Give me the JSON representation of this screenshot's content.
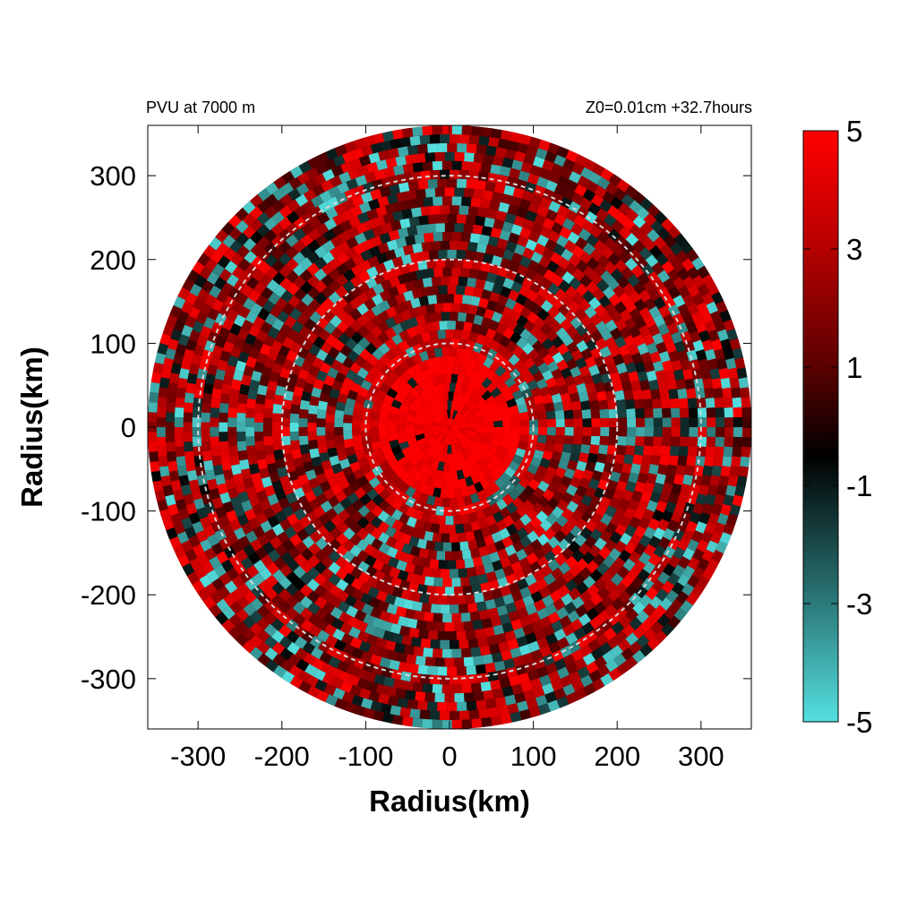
{
  "chart_data": {
    "type": "heatmap",
    "title_left": "PVU at  7000 m",
    "title_right": "Z0=0.01cm  +32.7hours",
    "xlabel": "Radius(km)",
    "ylabel": "Radius(km)",
    "xlim": [
      -360,
      360
    ],
    "ylim": [
      -360,
      360
    ],
    "x_ticks": [
      "-300",
      "-200",
      "-100",
      "0",
      "100",
      "200",
      "300"
    ],
    "y_ticks": [
      "300",
      "200",
      "100",
      "0",
      "-100",
      "-200",
      "-300"
    ],
    "domain_radius_km": 360,
    "reference_circles_km": [
      100,
      200,
      300
    ],
    "colorbar": {
      "range": [
        -5,
        5
      ],
      "ticks": [
        "5",
        "3",
        "1",
        "-1",
        "-3",
        "-5"
      ],
      "colors": {
        "high": "#ff0000",
        "mid": "#000000",
        "low": "#55e0e0"
      }
    },
    "field_description": "Potential vorticity (PVU); core >5 PVU within ~100 km of center, mixed positive/negative bands in outer rings"
  }
}
